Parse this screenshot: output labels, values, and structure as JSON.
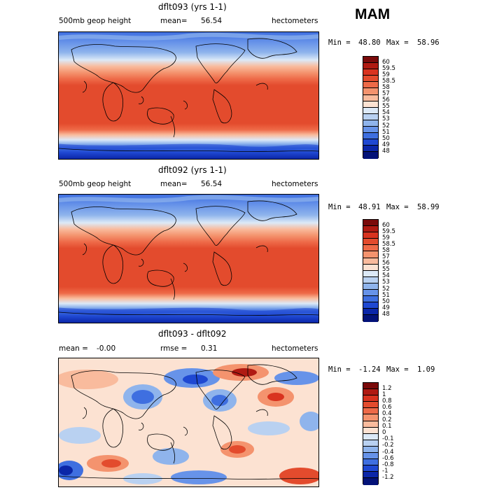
{
  "season": "MAM",
  "panels": [
    {
      "title": "dflt093 (yrs 1-1)",
      "left_label": "500mb geop height",
      "mean_label": "mean=",
      "mean_value": "56.54",
      "rmse_label": "",
      "rmse_value": "",
      "units": "hectometers",
      "min_label": "Min =",
      "min_value": "48.80",
      "max_label": "Max =",
      "max_value": "58.96",
      "legend": {
        "labels": [
          "60",
          "59.5",
          "59",
          "58.5",
          "58",
          "57",
          "56",
          "55",
          "54",
          "53",
          "52",
          "51",
          "50",
          "49",
          "48"
        ],
        "colors": [
          "#7a0a0a",
          "#b01a12",
          "#d9331f",
          "#e34b2d",
          "#ee6a48",
          "#f4936e",
          "#f9bb9d",
          "#fce2d2",
          "#dce9f7",
          "#b9d1f1",
          "#8fb4ec",
          "#6793e9",
          "#3f6fe0",
          "#1f48d2",
          "#0b26a8",
          "#031278"
        ]
      }
    },
    {
      "title": "dflt092 (yrs 1-1)",
      "left_label": "500mb geop height",
      "mean_label": "mean=",
      "mean_value": "56.54",
      "rmse_label": "",
      "rmse_value": "",
      "units": "hectometers",
      "min_label": "Min =",
      "min_value": "48.91",
      "max_label": "Max =",
      "max_value": "58.99",
      "legend": {
        "labels": [
          "60",
          "59.5",
          "59",
          "58.5",
          "58",
          "57",
          "56",
          "55",
          "54",
          "53",
          "52",
          "51",
          "50",
          "49",
          "48"
        ],
        "colors": [
          "#7a0a0a",
          "#b01a12",
          "#d9331f",
          "#e34b2d",
          "#ee6a48",
          "#f4936e",
          "#f9bb9d",
          "#fce2d2",
          "#dce9f7",
          "#b9d1f1",
          "#8fb4ec",
          "#6793e9",
          "#3f6fe0",
          "#1f48d2",
          "#0b26a8",
          "#031278"
        ]
      }
    },
    {
      "title": "dflt093 - dflt092",
      "left_label": "",
      "mean_label": "mean =",
      "mean_value": "-0.00",
      "rmse_label": "rmse =",
      "rmse_value": "0.31",
      "units": "hectometers",
      "min_label": "Min =",
      "min_value": "-1.24",
      "max_label": "Max =",
      "max_value": "1.09",
      "legend": {
        "labels": [
          "1.2",
          "1",
          "0.8",
          "0.6",
          "0.4",
          "0.2",
          "0.1",
          "0",
          "-0.1",
          "-0.2",
          "-0.4",
          "-0.6",
          "-0.8",
          "-1",
          "-1.2"
        ],
        "colors": [
          "#7a0a0a",
          "#b01a12",
          "#d9331f",
          "#e34b2d",
          "#ee6a48",
          "#f4936e",
          "#f9bb9d",
          "#fce2d2",
          "#dce9f7",
          "#b9d1f1",
          "#8fb4ec",
          "#6793e9",
          "#3f6fe0",
          "#1f48d2",
          "#0b26a8",
          "#031278"
        ]
      }
    }
  ]
}
